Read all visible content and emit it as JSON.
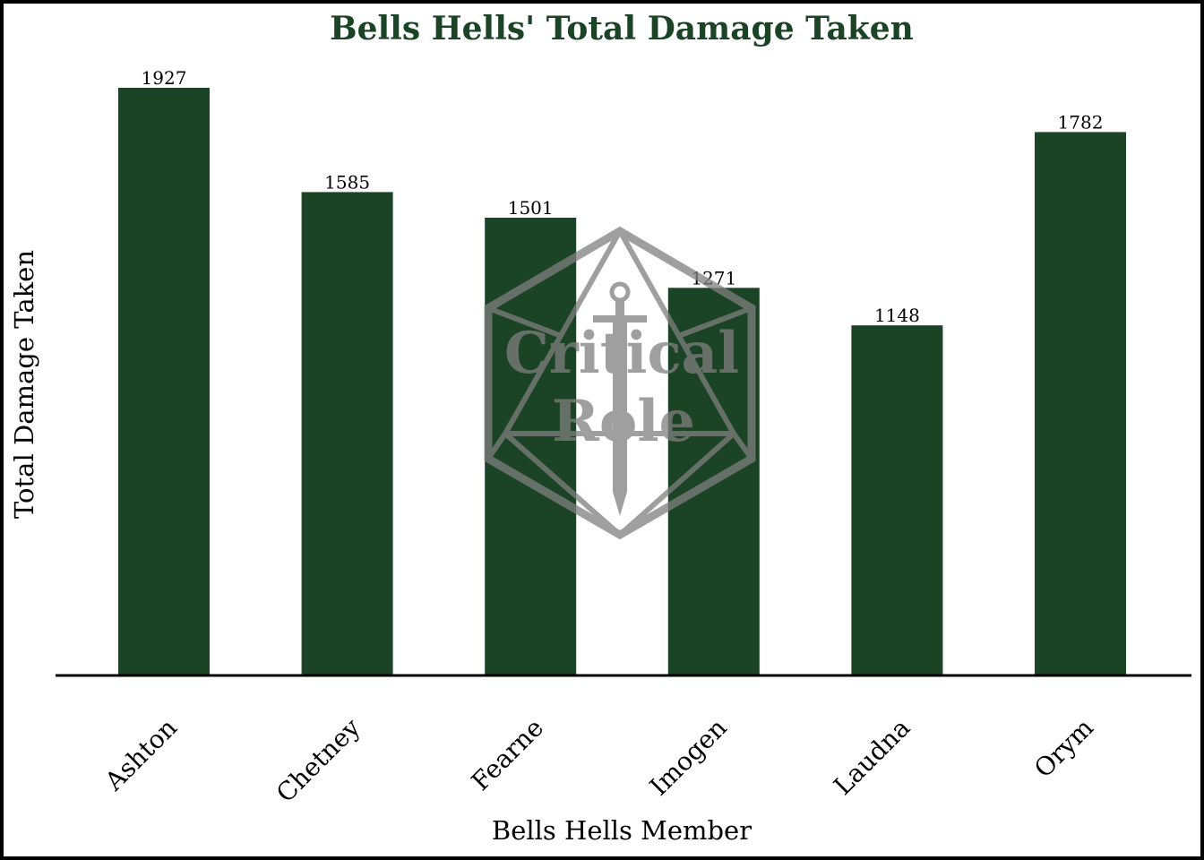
{
  "colors": {
    "bar": "#1b4325",
    "title": "#1b4325",
    "axis": "#000000",
    "watermark": "#808080"
  },
  "watermark": {
    "line1": "Critical",
    "line2": "Role",
    "icon": "d20-sword-logo"
  },
  "chart_data": {
    "type": "bar",
    "title": "Bells Hells' Total Damage Taken",
    "xlabel": "Bells Hells Member",
    "ylabel": "Total Damage Taken",
    "categories": [
      "Ashton",
      "Chetney",
      "Fearne",
      "Imogen",
      "Laudna",
      "Orym"
    ],
    "values": [
      1927,
      1585,
      1501,
      1271,
      1148,
      1782
    ],
    "ylim": [
      0,
      2000
    ],
    "grid": false,
    "legend": "none",
    "data_labels": true
  }
}
